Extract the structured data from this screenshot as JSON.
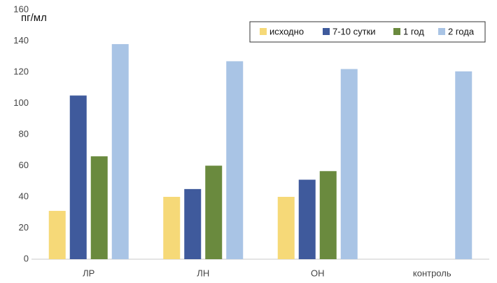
{
  "chart_data": {
    "type": "bar",
    "y_label": "пг/мл",
    "categories": [
      "ЛР",
      "ЛН",
      "ОН",
      "контроль"
    ],
    "series": [
      {
        "name": "исходно",
        "color": "#f6d978",
        "values": [
          31,
          40,
          40,
          null
        ]
      },
      {
        "name": "7-10 сутки",
        "color": "#3f5a9c",
        "values": [
          105,
          45,
          51,
          null
        ]
      },
      {
        "name": "1 год",
        "color": "#6a8a3e",
        "values": [
          66,
          60,
          56.5,
          null
        ]
      },
      {
        "name": "2 года",
        "color": "#a9c4e5",
        "values": [
          138,
          127,
          122,
          120.5
        ]
      }
    ],
    "ylim": [
      0,
      160
    ],
    "yticks": [
      0,
      20,
      40,
      60,
      80,
      100,
      120,
      140,
      160
    ],
    "grid": false,
    "legend": "top-right"
  }
}
